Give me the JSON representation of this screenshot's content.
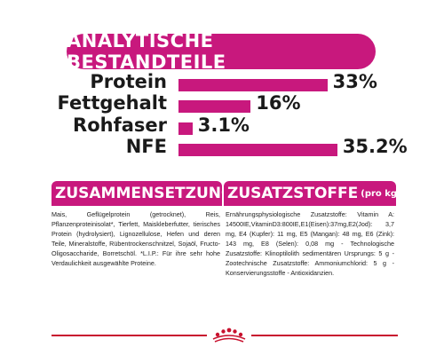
{
  "header": {
    "title": "ANALYTISCHE BESTANDTEILE"
  },
  "analysis": [
    {
      "label": "Protein",
      "value_label": "33%",
      "value": 33.0
    },
    {
      "label": "Fettgehalt",
      "value_label": "16%",
      "value": 16.0
    },
    {
      "label": "Rohfaser",
      "value_label": "3.1%",
      "value": 3.1
    },
    {
      "label": "NFE",
      "value_label": "35.2%",
      "value": 35.2
    }
  ],
  "composition": {
    "title": "ZUSAMMENSETZUNG",
    "text": "Mais, Geflügelprotein (getrocknet), Reis, Pflanzenproteinisolat*, Tierfett, Maiskleberfutter, tierisches Protein (hydrolysiert), Lignozellulose, Hefen und deren Teile, Mineralstoffe, Rübentrockenschnitzel, Sojaöl, Fructo-Oligosaccharide, Borretschöl. *L.I.P.: Für ihre sehr hohe Verdaulichkeit ausgewählte Proteine."
  },
  "additives": {
    "title": "ZUSATZSTOFFE",
    "title_suffix": "(pro kg)",
    "text": "Ernährungsphysiologische Zusatzstoffe: Vitamin A: 14500IE,VitaminD3:800IE,E1(Eisen):37mg,E2(Jod): 3,7 mg, E4 (Kupfer): 11 mg, E5 (Mangan): 48 mg, E6 (Zink): 143 mg, E8 (Selen): 0,08 mg - Technologische Zusatzstoffe: Klinoptilolith sedimentären Ursprungs: 5 g - Zootechnische Zusatzstoffe: Ammoniumchlorid: 5 g - Konservierungsstoffe - Antioxidanzien."
  },
  "colors": {
    "accent": "#c8187d",
    "footer_line": "#c8112e"
  },
  "footer": {
    "logo_icon": "royal-canin-crown-icon"
  }
}
